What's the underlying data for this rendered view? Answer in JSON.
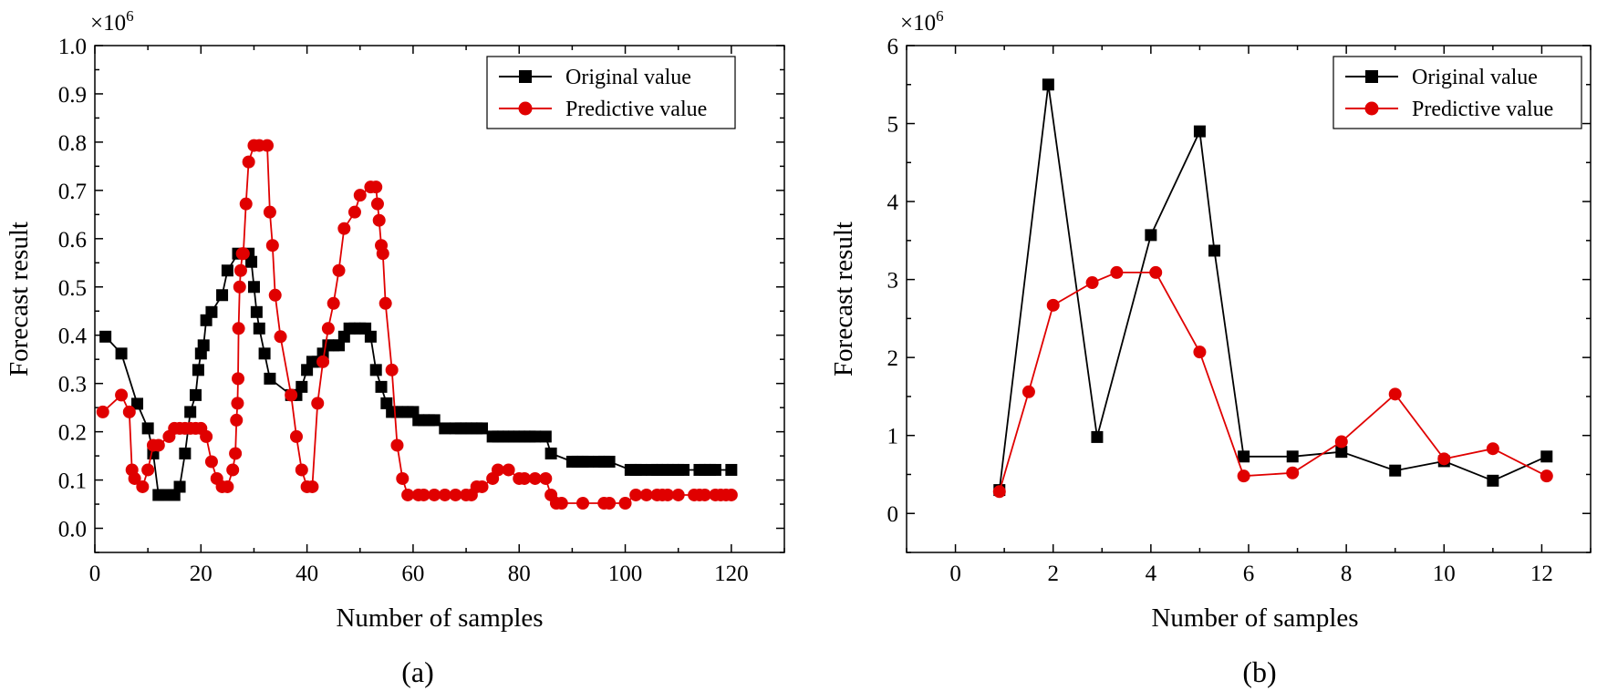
{
  "chart_data": [
    {
      "type": "line",
      "panel_label": "(a)",
      "xlabel": "Number of samples",
      "ylabel": "Forecast result",
      "multiplier": "×10",
      "multiplier_exp": "6",
      "xlim": [
        0,
        130
      ],
      "ylim": [
        -0.05,
        1.0
      ],
      "xticks": [
        0,
        20,
        40,
        60,
        80,
        100,
        120
      ],
      "yticks": [
        0.0,
        0.1,
        0.2,
        0.3,
        0.4,
        0.5,
        0.6,
        0.7,
        0.8,
        0.9,
        1.0
      ],
      "ytick_labels": [
        "0.0",
        "0.1",
        "0.2",
        "0.3",
        "0.4",
        "0.5",
        "0.6",
        "0.7",
        "0.8",
        "0.9",
        "1.0"
      ],
      "legend_position": "top-right",
      "series": [
        {
          "name": "Original value",
          "color": "#000000",
          "marker": "square",
          "x": [
            2,
            5,
            8,
            10,
            11,
            12,
            13,
            15,
            16,
            17,
            18,
            19,
            19.5,
            20,
            20.5,
            21,
            22,
            24,
            25,
            27,
            29,
            29.5,
            30,
            30.5,
            31,
            32,
            33,
            37,
            38,
            39,
            40,
            41,
            42,
            43,
            44,
            45,
            46,
            47,
            48,
            49,
            50,
            51,
            52,
            53,
            54,
            55,
            56,
            57,
            58,
            59,
            60,
            61,
            62,
            63,
            64,
            66,
            68,
            69,
            70,
            71,
            72,
            73,
            75,
            76,
            77,
            78,
            79,
            80,
            81,
            82,
            83,
            85,
            86,
            90,
            91,
            92,
            93,
            95,
            96,
            97,
            101,
            102,
            103,
            105,
            106,
            107,
            108,
            109,
            110,
            111,
            114,
            115,
            116,
            117,
            120
          ],
          "y": [
            0.397,
            0.362,
            0.258,
            0.207,
            0.155,
            0.069,
            0.069,
            0.069,
            0.086,
            0.155,
            0.241,
            0.276,
            0.328,
            0.362,
            0.379,
            0.431,
            0.448,
            0.483,
            0.534,
            0.569,
            0.569,
            0.552,
            0.5,
            0.448,
            0.414,
            0.362,
            0.31,
            0.276,
            0.276,
            0.293,
            0.328,
            0.345,
            0.345,
            0.362,
            0.379,
            0.379,
            0.379,
            0.397,
            0.414,
            0.414,
            0.414,
            0.414,
            0.397,
            0.328,
            0.293,
            0.259,
            0.241,
            0.241,
            0.241,
            0.241,
            0.241,
            0.224,
            0.224,
            0.224,
            0.224,
            0.207,
            0.207,
            0.207,
            0.207,
            0.207,
            0.207,
            0.207,
            0.19,
            0.19,
            0.19,
            0.19,
            0.19,
            0.19,
            0.19,
            0.19,
            0.19,
            0.19,
            0.155,
            0.138,
            0.138,
            0.138,
            0.138,
            0.138,
            0.138,
            0.138,
            0.121,
            0.121,
            0.121,
            0.121,
            0.121,
            0.121,
            0.121,
            0.121,
            0.121,
            0.121,
            0.121,
            0.121,
            0.121,
            0.121,
            0.121
          ]
        },
        {
          "name": "Predictive value",
          "color": "#e00000",
          "marker": "circle",
          "x": [
            1.5,
            5,
            6.5,
            7,
            7.5,
            9,
            10,
            11,
            12,
            14,
            15,
            16,
            17,
            18,
            19,
            20,
            21,
            22,
            23,
            24,
            25,
            26,
            26.5,
            26.7,
            26.9,
            27,
            27.1,
            27.3,
            27.5,
            27.8,
            28,
            28.5,
            29,
            30,
            31,
            32.5,
            33,
            33.5,
            34,
            35,
            37,
            38,
            39,
            40,
            41,
            42,
            43,
            44,
            45,
            46,
            47,
            49,
            50,
            52,
            53,
            53.3,
            53.6,
            54,
            54.3,
            54.8,
            56,
            57,
            58,
            59,
            61,
            62,
            64,
            66,
            68,
            70,
            71,
            72,
            73,
            75,
            76,
            78,
            80,
            81,
            83,
            85,
            86,
            87,
            88,
            92,
            96,
            97,
            100,
            102,
            104,
            106,
            107,
            108,
            110,
            113,
            114,
            115,
            117,
            118,
            119,
            120
          ],
          "y": [
            0.241,
            0.276,
            0.241,
            0.121,
            0.103,
            0.086,
            0.121,
            0.172,
            0.172,
            0.19,
            0.207,
            0.207,
            0.207,
            0.207,
            0.207,
            0.207,
            0.19,
            0.138,
            0.103,
            0.086,
            0.086,
            0.121,
            0.155,
            0.224,
            0.259,
            0.31,
            0.414,
            0.5,
            0.534,
            0.569,
            0.569,
            0.672,
            0.759,
            0.793,
            0.793,
            0.793,
            0.655,
            0.586,
            0.483,
            0.397,
            0.276,
            0.19,
            0.121,
            0.086,
            0.086,
            0.259,
            0.345,
            0.414,
            0.466,
            0.534,
            0.621,
            0.655,
            0.69,
            0.707,
            0.707,
            0.672,
            0.638,
            0.586,
            0.569,
            0.466,
            0.328,
            0.172,
            0.103,
            0.069,
            0.069,
            0.069,
            0.069,
            0.069,
            0.069,
            0.069,
            0.069,
            0.086,
            0.086,
            0.103,
            0.121,
            0.121,
            0.103,
            0.103,
            0.103,
            0.103,
            0.069,
            0.052,
            0.052,
            0.052,
            0.052,
            0.052,
            0.052,
            0.069,
            0.069,
            0.069,
            0.069,
            0.069,
            0.069,
            0.069,
            0.069,
            0.069,
            0.069,
            0.069,
            0.069,
            0.069
          ]
        }
      ]
    },
    {
      "type": "line",
      "panel_label": "(b)",
      "xlabel": "Number of samples",
      "ylabel": "Forecast result",
      "multiplier": "×10",
      "multiplier_exp": "6",
      "xlim": [
        -1,
        13
      ],
      "ylim": [
        -0.5,
        6
      ],
      "xticks": [
        0,
        2,
        4,
        6,
        8,
        10,
        12
      ],
      "yticks": [
        0,
        1,
        2,
        3,
        4,
        5,
        6
      ],
      "ytick_labels": [
        "0",
        "1",
        "2",
        "3",
        "4",
        "5",
        "6"
      ],
      "legend_position": "top-right",
      "series": [
        {
          "name": "Original value",
          "color": "#000000",
          "marker": "square",
          "x": [
            0.9,
            1.9,
            2.9,
            4.0,
            5.0,
            5.3,
            5.9,
            6.9,
            7.9,
            9.0,
            10.0,
            11.0,
            12.1
          ],
          "y": [
            0.3,
            5.5,
            0.98,
            3.57,
            4.9,
            3.37,
            0.73,
            0.73,
            0.79,
            0.55,
            0.67,
            0.42,
            0.73
          ]
        },
        {
          "name": "Predictive value",
          "color": "#e00000",
          "marker": "circle",
          "x": [
            0.9,
            1.5,
            2.0,
            2.8,
            3.3,
            4.1,
            5.0,
            5.9,
            6.9,
            7.9,
            9.0,
            10.0,
            11.0,
            12.1
          ],
          "y": [
            0.28,
            1.56,
            2.67,
            2.96,
            3.09,
            3.09,
            2.07,
            0.48,
            0.52,
            0.92,
            1.53,
            0.7,
            0.83,
            0.48
          ]
        }
      ]
    }
  ]
}
